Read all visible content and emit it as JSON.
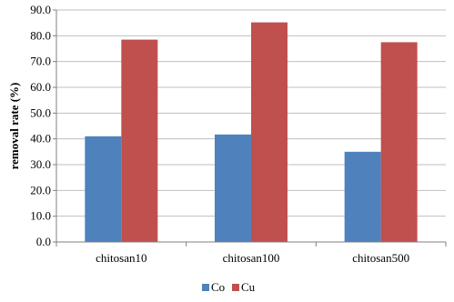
{
  "chart_data": {
    "type": "bar",
    "categories": [
      "chitosan10",
      "chitosan100",
      "chitosan500"
    ],
    "series": [
      {
        "name": "Co",
        "values": [
          41.0,
          41.7,
          35.0
        ],
        "color": "#4f81bd"
      },
      {
        "name": "Cu",
        "values": [
          78.5,
          85.2,
          77.5
        ],
        "color": "#c0504d"
      }
    ],
    "xlabel": "",
    "ylabel": "removal rate (%)",
    "ylim": [
      0,
      90
    ],
    "yticks": [
      "0.0",
      "10.0",
      "20.0",
      "30.0",
      "40.0",
      "50.0",
      "60.0",
      "70.0",
      "80.0",
      "90.0"
    ],
    "grid": true,
    "legend_position": "bottom"
  }
}
